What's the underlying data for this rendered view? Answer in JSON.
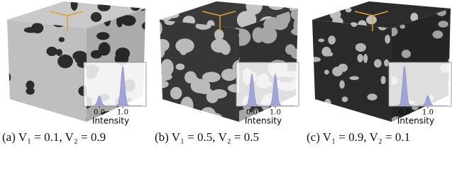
{
  "panels": [
    {
      "caption": "(a) V₁ = 0.1, V₂ = 0.9",
      "inset": {
        "xticks": [
          "0.0",
          "1.0"
        ],
        "xlabel": "Intensity"
      }
    },
    {
      "caption": "(b) V₁ = 0.5, V₂ = 0.5",
      "inset": {
        "xticks": [
          "0.0",
          "1.0"
        ],
        "xlabel": "Intensity"
      }
    },
    {
      "caption": "(c) V₁ = 0.9, V₂ = 0.1",
      "inset": {
        "xticks": [
          "0.0",
          "1.0"
        ],
        "xlabel": "Intensity"
      }
    }
  ]
}
